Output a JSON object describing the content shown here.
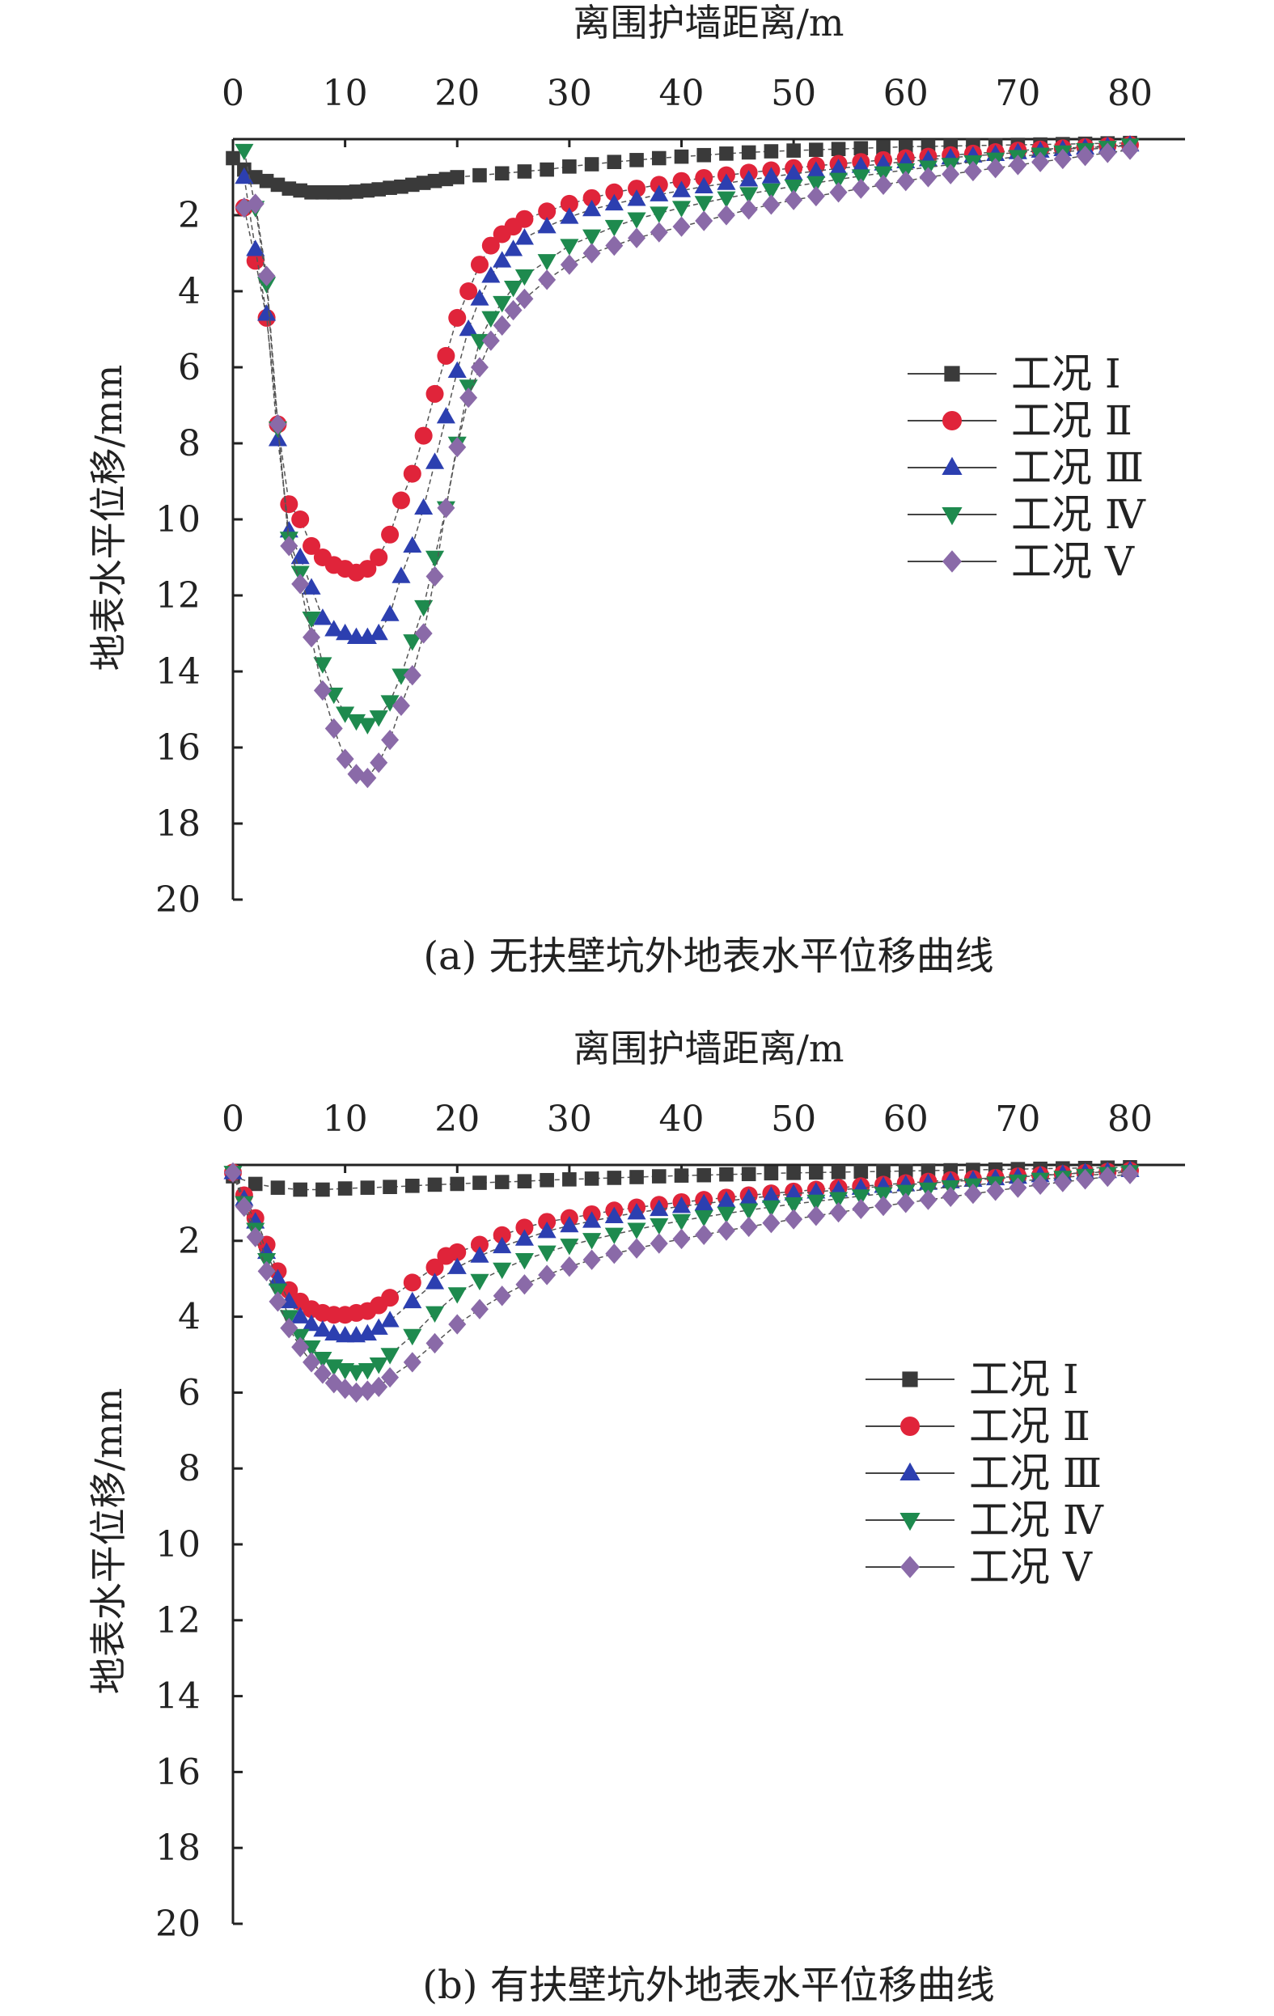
{
  "chart_data": [
    {
      "type": "line",
      "caption": "(a) 无扶壁坑外地表水平位移曲线",
      "xlabel": "离围护墙距离/m",
      "ylabel": "地表水平位移/mm",
      "xlim": [
        0,
        85
      ],
      "ylim": [
        0,
        20
      ],
      "x_ticks": [
        0,
        10,
        20,
        30,
        40,
        50,
        60,
        70,
        80
      ],
      "y_ticks": [
        2,
        4,
        6,
        8,
        10,
        12,
        14,
        16,
        18,
        20
      ],
      "y_inverted": true,
      "x_axis_position": "top",
      "legend_position": "right",
      "series": [
        {
          "name": "工况 Ⅰ",
          "color": "#3a3a3a",
          "marker": "square",
          "x": [
            0,
            1,
            2,
            3,
            4,
            5,
            6,
            7,
            8,
            9,
            10,
            11,
            12,
            13,
            14,
            15,
            16,
            17,
            18,
            19,
            20,
            22,
            24,
            26,
            28,
            30,
            32,
            34,
            36,
            38,
            40,
            42,
            44,
            46,
            48,
            50,
            52,
            54,
            56,
            58,
            60,
            62,
            64,
            66,
            68,
            70,
            72,
            74,
            76,
            78,
            80
          ],
          "y": [
            0.5,
            0.8,
            1.0,
            1.1,
            1.2,
            1.3,
            1.35,
            1.4,
            1.4,
            1.4,
            1.4,
            1.38,
            1.35,
            1.32,
            1.28,
            1.25,
            1.2,
            1.15,
            1.1,
            1.05,
            1.0,
            0.95,
            0.9,
            0.85,
            0.8,
            0.72,
            0.66,
            0.6,
            0.55,
            0.5,
            0.46,
            0.42,
            0.38,
            0.35,
            0.32,
            0.3,
            0.28,
            0.26,
            0.24,
            0.22,
            0.2,
            0.19,
            0.18,
            0.17,
            0.16,
            0.15,
            0.14,
            0.13,
            0.12,
            0.11,
            0.1
          ]
        },
        {
          "name": "工况 Ⅱ",
          "color": "#e0243a",
          "marker": "circle",
          "x": [
            1,
            2,
            3,
            4,
            5,
            6,
            7,
            8,
            9,
            10,
            11,
            12,
            13,
            14,
            15,
            16,
            17,
            18,
            19,
            20,
            21,
            22,
            23,
            24,
            25,
            26,
            28,
            30,
            32,
            34,
            36,
            38,
            40,
            42,
            44,
            46,
            48,
            50,
            52,
            54,
            56,
            58,
            60,
            62,
            64,
            66,
            68,
            70,
            72,
            74,
            76,
            78,
            80
          ],
          "y": [
            1.8,
            3.2,
            4.7,
            7.5,
            9.6,
            10.0,
            10.7,
            11.0,
            11.2,
            11.3,
            11.4,
            11.3,
            11.0,
            10.4,
            9.5,
            8.8,
            7.8,
            6.7,
            5.7,
            4.7,
            4.0,
            3.3,
            2.8,
            2.5,
            2.3,
            2.1,
            1.9,
            1.7,
            1.55,
            1.4,
            1.3,
            1.2,
            1.1,
            1.02,
            0.95,
            0.88,
            0.82,
            0.76,
            0.7,
            0.65,
            0.6,
            0.55,
            0.5,
            0.46,
            0.42,
            0.38,
            0.34,
            0.3,
            0.27,
            0.24,
            0.21,
            0.18,
            0.15
          ]
        },
        {
          "name": "工况 Ⅲ",
          "color": "#2c3fb0",
          "marker": "triangle-up",
          "x": [
            1,
            2,
            3,
            4,
            5,
            6,
            7,
            8,
            9,
            10,
            11,
            12,
            13,
            14,
            15,
            16,
            17,
            18,
            19,
            20,
            21,
            22,
            23,
            24,
            25,
            26,
            28,
            30,
            32,
            34,
            36,
            38,
            40,
            42,
            44,
            46,
            48,
            50,
            52,
            54,
            56,
            58,
            60,
            62,
            64,
            66,
            68,
            70,
            72,
            74,
            76,
            78,
            80
          ],
          "y": [
            1.0,
            2.9,
            4.6,
            7.9,
            10.3,
            11.0,
            11.8,
            12.6,
            12.9,
            13.0,
            13.1,
            13.1,
            13.0,
            12.5,
            11.5,
            10.7,
            9.7,
            8.5,
            7.3,
            6.1,
            5.0,
            4.2,
            3.6,
            3.2,
            2.9,
            2.6,
            2.3,
            2.05,
            1.85,
            1.7,
            1.58,
            1.46,
            1.35,
            1.25,
            1.16,
            1.07,
            0.99,
            0.91,
            0.84,
            0.77,
            0.71,
            0.65,
            0.59,
            0.54,
            0.49,
            0.44,
            0.4,
            0.35,
            0.31,
            0.27,
            0.23,
            0.19,
            0.15
          ]
        },
        {
          "name": "工况 Ⅳ",
          "color": "#1e8a4e",
          "marker": "triangle-down",
          "x": [
            1,
            2,
            3,
            4,
            5,
            6,
            7,
            8,
            9,
            10,
            11,
            12,
            13,
            14,
            15,
            16,
            17,
            18,
            19,
            20,
            21,
            22,
            23,
            24,
            25,
            26,
            28,
            30,
            32,
            34,
            36,
            38,
            40,
            42,
            44,
            46,
            48,
            50,
            52,
            54,
            56,
            58,
            60,
            62,
            64,
            66,
            68,
            70,
            72,
            74,
            76,
            78,
            80
          ],
          "y": [
            0.3,
            1.8,
            3.8,
            7.6,
            10.5,
            11.4,
            12.6,
            13.8,
            14.6,
            15.1,
            15.3,
            15.4,
            15.2,
            14.8,
            14.1,
            13.2,
            12.3,
            11.0,
            9.7,
            8.0,
            6.5,
            5.3,
            4.7,
            4.3,
            3.9,
            3.6,
            3.2,
            2.8,
            2.55,
            2.3,
            2.1,
            1.95,
            1.8,
            1.67,
            1.55,
            1.44,
            1.34,
            1.24,
            1.15,
            1.06,
            0.97,
            0.89,
            0.81,
            0.74,
            0.67,
            0.6,
            0.53,
            0.46,
            0.4,
            0.34,
            0.28,
            0.22,
            0.16
          ]
        },
        {
          "name": "工况 Ⅴ",
          "color": "#8a6aa8",
          "marker": "diamond",
          "x": [
            1,
            2,
            3,
            4,
            5,
            6,
            7,
            8,
            9,
            10,
            11,
            12,
            13,
            14,
            15,
            16,
            17,
            18,
            19,
            20,
            21,
            22,
            23,
            24,
            25,
            26,
            28,
            30,
            32,
            34,
            36,
            38,
            40,
            42,
            44,
            46,
            48,
            50,
            52,
            54,
            56,
            58,
            60,
            62,
            64,
            66,
            68,
            70,
            72,
            74,
            76,
            78,
            80
          ],
          "y": [
            1.8,
            1.7,
            3.6,
            7.5,
            10.7,
            11.7,
            13.1,
            14.5,
            15.5,
            16.3,
            16.7,
            16.8,
            16.4,
            15.8,
            14.9,
            14.1,
            13.0,
            11.5,
            9.7,
            8.1,
            6.8,
            6.0,
            5.3,
            4.9,
            4.5,
            4.2,
            3.7,
            3.3,
            3.0,
            2.8,
            2.6,
            2.45,
            2.3,
            2.15,
            2.0,
            1.85,
            1.72,
            1.6,
            1.5,
            1.4,
            1.3,
            1.2,
            1.1,
            1.0,
            0.92,
            0.84,
            0.76,
            0.68,
            0.6,
            0.52,
            0.44,
            0.36,
            0.28
          ]
        }
      ]
    },
    {
      "type": "line",
      "caption": "(b) 有扶壁坑外地表水平位移曲线",
      "xlabel": "离围护墙距离/m",
      "ylabel": "地表水平位移/mm",
      "xlim": [
        0,
        85
      ],
      "ylim": [
        0,
        20
      ],
      "x_ticks": [
        0,
        10,
        20,
        30,
        40,
        50,
        60,
        70,
        80
      ],
      "y_ticks": [
        2,
        4,
        6,
        8,
        10,
        12,
        14,
        16,
        18,
        20
      ],
      "y_inverted": true,
      "x_axis_position": "top",
      "legend_position": "right",
      "series": [
        {
          "name": "工况 Ⅰ",
          "color": "#3a3a3a",
          "marker": "square",
          "x": [
            0,
            2,
            4,
            6,
            8,
            10,
            12,
            14,
            16,
            18,
            20,
            22,
            24,
            26,
            28,
            30,
            32,
            34,
            36,
            38,
            40,
            42,
            44,
            46,
            48,
            50,
            52,
            54,
            56,
            58,
            60,
            62,
            64,
            66,
            68,
            70,
            72,
            74,
            76,
            78,
            80
          ],
          "y": [
            0.3,
            0.5,
            0.6,
            0.65,
            0.65,
            0.62,
            0.6,
            0.58,
            0.55,
            0.52,
            0.5,
            0.47,
            0.45,
            0.43,
            0.4,
            0.38,
            0.36,
            0.34,
            0.32,
            0.3,
            0.28,
            0.27,
            0.25,
            0.24,
            0.22,
            0.21,
            0.2,
            0.19,
            0.18,
            0.17,
            0.16,
            0.15,
            0.14,
            0.13,
            0.12,
            0.11,
            0.1,
            0.09,
            0.08,
            0.07,
            0.06
          ]
        },
        {
          "name": "工况 Ⅱ",
          "color": "#e0243a",
          "marker": "circle",
          "x": [
            0,
            1,
            2,
            3,
            4,
            5,
            6,
            7,
            8,
            9,
            10,
            11,
            12,
            13,
            14,
            16,
            18,
            19,
            20,
            22,
            24,
            26,
            28,
            30,
            32,
            34,
            36,
            38,
            40,
            42,
            44,
            46,
            48,
            50,
            52,
            54,
            56,
            58,
            60,
            62,
            64,
            66,
            68,
            70,
            72,
            74,
            76,
            78,
            80
          ],
          "y": [
            0.2,
            0.8,
            1.4,
            2.1,
            2.8,
            3.3,
            3.6,
            3.8,
            3.9,
            3.95,
            3.95,
            3.9,
            3.85,
            3.7,
            3.5,
            3.1,
            2.7,
            2.4,
            2.3,
            2.1,
            1.85,
            1.65,
            1.5,
            1.4,
            1.3,
            1.2,
            1.12,
            1.05,
            0.98,
            0.92,
            0.86,
            0.8,
            0.75,
            0.7,
            0.65,
            0.6,
            0.56,
            0.52,
            0.48,
            0.44,
            0.4,
            0.37,
            0.34,
            0.3,
            0.27,
            0.24,
            0.21,
            0.18,
            0.15
          ]
        },
        {
          "name": "工况 Ⅲ",
          "color": "#2c3fb0",
          "marker": "triangle-up",
          "x": [
            0,
            1,
            2,
            3,
            4,
            5,
            6,
            7,
            8,
            9,
            10,
            11,
            12,
            13,
            14,
            16,
            18,
            20,
            22,
            24,
            26,
            28,
            30,
            32,
            34,
            36,
            38,
            40,
            42,
            44,
            46,
            48,
            50,
            52,
            54,
            56,
            58,
            60,
            62,
            64,
            66,
            68,
            70,
            72,
            74,
            76,
            78,
            80
          ],
          "y": [
            0.2,
            0.9,
            1.5,
            2.3,
            3.0,
            3.6,
            4.0,
            4.2,
            4.35,
            4.45,
            4.5,
            4.5,
            4.45,
            4.3,
            4.1,
            3.6,
            3.1,
            2.7,
            2.4,
            2.15,
            1.95,
            1.75,
            1.6,
            1.48,
            1.36,
            1.26,
            1.17,
            1.09,
            1.02,
            0.95,
            0.88,
            0.82,
            0.76,
            0.71,
            0.66,
            0.61,
            0.56,
            0.52,
            0.48,
            0.44,
            0.4,
            0.36,
            0.32,
            0.28,
            0.24,
            0.2,
            0.17,
            0.14
          ]
        },
        {
          "name": "工况 Ⅳ",
          "color": "#1e8a4e",
          "marker": "triangle-down",
          "x": [
            0,
            1,
            2,
            3,
            4,
            5,
            6,
            7,
            8,
            9,
            10,
            11,
            12,
            13,
            14,
            16,
            18,
            20,
            22,
            24,
            26,
            28,
            30,
            32,
            34,
            36,
            38,
            40,
            42,
            44,
            46,
            48,
            50,
            52,
            54,
            56,
            58,
            60,
            62,
            64,
            66,
            68,
            70,
            72,
            74,
            76,
            78,
            80
          ],
          "y": [
            0.2,
            1.0,
            1.7,
            2.5,
            3.3,
            4.0,
            4.5,
            4.8,
            5.1,
            5.3,
            5.4,
            5.45,
            5.4,
            5.25,
            5.0,
            4.5,
            3.9,
            3.4,
            3.05,
            2.75,
            2.5,
            2.3,
            2.12,
            1.97,
            1.83,
            1.7,
            1.58,
            1.47,
            1.37,
            1.28,
            1.19,
            1.11,
            1.03,
            0.96,
            0.89,
            0.82,
            0.76,
            0.7,
            0.64,
            0.58,
            0.53,
            0.48,
            0.43,
            0.38,
            0.33,
            0.28,
            0.23,
            0.18
          ]
        },
        {
          "name": "工况 Ⅴ",
          "color": "#8a6aa8",
          "marker": "diamond",
          "x": [
            0,
            1,
            2,
            3,
            4,
            5,
            6,
            7,
            8,
            9,
            10,
            11,
            12,
            13,
            14,
            16,
            18,
            20,
            22,
            24,
            26,
            28,
            30,
            32,
            34,
            36,
            38,
            40,
            42,
            44,
            46,
            48,
            50,
            52,
            54,
            56,
            58,
            60,
            62,
            64,
            66,
            68,
            70,
            72,
            74,
            76,
            78,
            80
          ],
          "y": [
            0.2,
            1.1,
            1.9,
            2.8,
            3.6,
            4.3,
            4.8,
            5.2,
            5.5,
            5.75,
            5.9,
            6.0,
            5.95,
            5.85,
            5.6,
            5.2,
            4.7,
            4.2,
            3.8,
            3.45,
            3.15,
            2.9,
            2.68,
            2.5,
            2.34,
            2.2,
            2.07,
            1.95,
            1.84,
            1.73,
            1.63,
            1.53,
            1.43,
            1.34,
            1.25,
            1.16,
            1.08,
            1.0,
            0.92,
            0.84,
            0.76,
            0.68,
            0.6,
            0.52,
            0.45,
            0.38,
            0.31,
            0.24
          ]
        }
      ]
    }
  ]
}
